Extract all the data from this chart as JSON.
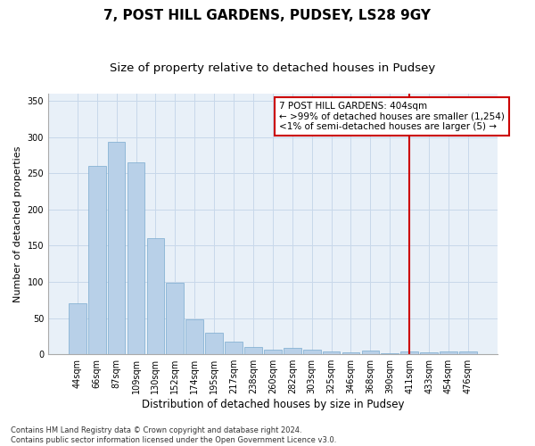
{
  "title": "7, POST HILL GARDENS, PUDSEY, LS28 9GY",
  "subtitle": "Size of property relative to detached houses in Pudsey",
  "xlabel": "Distribution of detached houses by size in Pudsey",
  "ylabel": "Number of detached properties",
  "categories": [
    "44sqm",
    "66sqm",
    "87sqm",
    "109sqm",
    "130sqm",
    "152sqm",
    "174sqm",
    "195sqm",
    "217sqm",
    "238sqm",
    "260sqm",
    "282sqm",
    "303sqm",
    "325sqm",
    "346sqm",
    "368sqm",
    "390sqm",
    "411sqm",
    "433sqm",
    "454sqm",
    "476sqm"
  ],
  "values": [
    70,
    260,
    293,
    265,
    160,
    99,
    48,
    30,
    18,
    10,
    7,
    9,
    7,
    4,
    3,
    5,
    1,
    4,
    3,
    4,
    4
  ],
  "bar_color": "#b8d0e8",
  "bar_edge_color": "#7aaacf",
  "grid_color": "#c8d8ea",
  "background_color": "#e8f0f8",
  "vline_x_index": 17,
  "vline_color": "#cc0000",
  "annotation_text": "7 POST HILL GARDENS: 404sqm\n← >99% of detached houses are smaller (1,254)\n<1% of semi-detached houses are larger (5) →",
  "annotation_box_facecolor": "#ffffff",
  "annotation_border_color": "#cc0000",
  "ylim": [
    0,
    360
  ],
  "yticks": [
    0,
    50,
    100,
    150,
    200,
    250,
    300,
    350
  ],
  "footer_text": "Contains HM Land Registry data © Crown copyright and database right 2024.\nContains public sector information licensed under the Open Government Licence v3.0.",
  "title_fontsize": 11,
  "subtitle_fontsize": 9.5,
  "xlabel_fontsize": 8.5,
  "ylabel_fontsize": 8,
  "tick_fontsize": 7,
  "annotation_fontsize": 7.5,
  "footer_fontsize": 6
}
